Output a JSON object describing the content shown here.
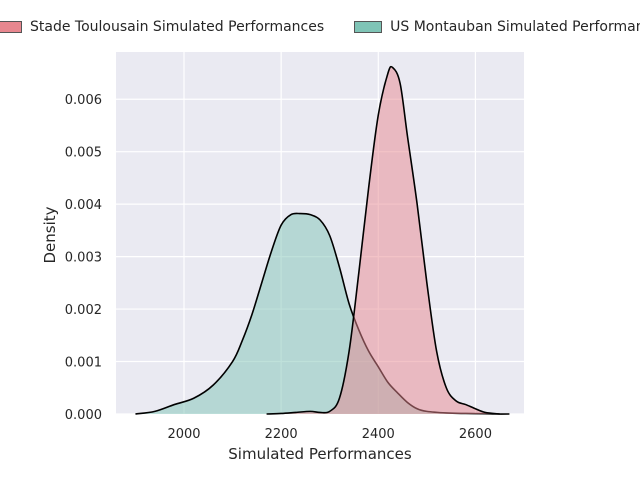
{
  "chart_data": {
    "type": "area",
    "title": "",
    "xlabel": "Simulated Performances",
    "ylabel": "Density",
    "xlim": [
      1860,
      2700
    ],
    "ylim": [
      0,
      0.0069
    ],
    "xticks": [
      2000,
      2200,
      2400,
      2600
    ],
    "yticks": [
      0.0,
      0.001,
      0.002,
      0.003,
      0.004,
      0.005,
      0.006
    ],
    "ytick_labels": [
      "0.000",
      "0.001",
      "0.002",
      "0.003",
      "0.004",
      "0.005",
      "0.006"
    ],
    "grid": true,
    "legend_position": "top",
    "series": [
      {
        "name": "Stade Toulousain Simulated Performances",
        "color": "#e8878f",
        "x": [
          2170,
          2200,
          2230,
          2260,
          2280,
          2300,
          2320,
          2340,
          2360,
          2380,
          2400,
          2420,
          2430,
          2445,
          2460,
          2480,
          2500,
          2520,
          2540,
          2560,
          2580,
          2600,
          2620,
          2650
        ],
        "y": [
          0.0,
          1e-05,
          3e-05,
          5e-05,
          3e-05,
          5e-05,
          0.0003,
          0.0012,
          0.0027,
          0.0043,
          0.0057,
          0.0065,
          0.0066,
          0.0063,
          0.0053,
          0.004,
          0.0025,
          0.0012,
          0.0005,
          0.00025,
          0.00018,
          0.0001,
          3e-05,
          0.0
        ]
      },
      {
        "name": "US Montauban Simulated Performances",
        "color": "#7fc4b6",
        "x": [
          1900,
          1940,
          1980,
          2020,
          2060,
          2100,
          2120,
          2140,
          2160,
          2180,
          2200,
          2220,
          2240,
          2260,
          2280,
          2300,
          2320,
          2340,
          2360,
          2380,
          2400,
          2420,
          2440,
          2460,
          2480,
          2500,
          2540,
          2580,
          2620,
          2640,
          2670
        ],
        "y": [
          0.0,
          5e-05,
          0.00018,
          0.0003,
          0.00055,
          0.001,
          0.0014,
          0.0019,
          0.0025,
          0.0031,
          0.0036,
          0.0038,
          0.00382,
          0.0038,
          0.0037,
          0.0034,
          0.0028,
          0.0021,
          0.0016,
          0.0012,
          0.0009,
          0.0006,
          0.0004,
          0.00022,
          0.0001,
          5e-05,
          2e-05,
          1e-05,
          5e-06,
          0.0,
          0.0
        ]
      }
    ]
  }
}
